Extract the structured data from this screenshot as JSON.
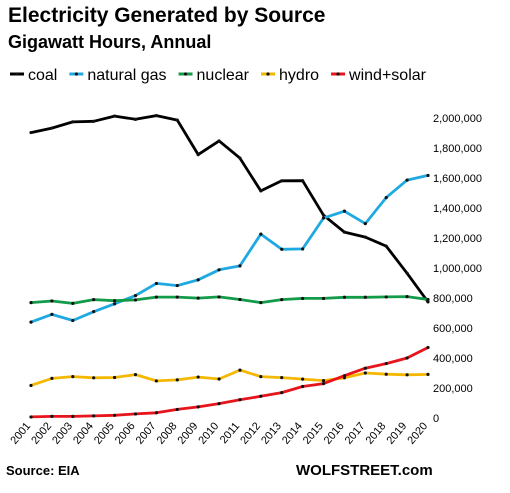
{
  "chart_data": {
    "type": "line",
    "title": "Electricity Generated by Source",
    "subtitle": "Gigawatt Hours, Annual",
    "x": [
      "2001",
      "2002",
      "2003",
      "2004",
      "2005",
      "2006",
      "2007",
      "2008",
      "2009",
      "2010",
      "2011",
      "2012",
      "2013",
      "2014",
      "2015",
      "2016",
      "2017",
      "2018",
      "2019",
      "2020"
    ],
    "ylim": [
      0,
      2000000
    ],
    "yticks": [
      0,
      200000,
      400000,
      600000,
      800000,
      1000000,
      1200000,
      1400000,
      1600000,
      1800000,
      2000000
    ],
    "ytick_labels": [
      "0",
      "200,000",
      "400,000",
      "600,000",
      "800,000",
      "1,000,000",
      "1,200,000",
      "1,400,000",
      "1,600,000",
      "1,800,000",
      "2,000,000"
    ],
    "y_axis_position": "right",
    "grid": false,
    "legend_position": "top",
    "series": [
      {
        "name": "coal",
        "color": "#000000",
        "values": [
          1903000,
          1933000,
          1974000,
          1978000,
          2013000,
          1991000,
          2016000,
          1986000,
          1756000,
          1847000,
          1733000,
          1514000,
          1581000,
          1582000,
          1352000,
          1239000,
          1206000,
          1146000,
          965000,
          774000
        ]
      },
      {
        "name": "natural gas",
        "color": "#1fa9e1",
        "values": [
          639000,
          691000,
          650000,
          709000,
          761000,
          816000,
          897000,
          883000,
          921000,
          988000,
          1014000,
          1226000,
          1125000,
          1127000,
          1333000,
          1379000,
          1296000,
          1469000,
          1586000,
          1617000
        ]
      },
      {
        "name": "nuclear",
        "color": "#129b48",
        "values": [
          769000,
          780000,
          764000,
          789000,
          782000,
          787000,
          806000,
          806000,
          799000,
          807000,
          790000,
          769000,
          789000,
          797000,
          797000,
          805000,
          805000,
          807000,
          809000,
          790000
        ]
      },
      {
        "name": "hydro",
        "color": "#f5b800",
        "values": [
          217000,
          264000,
          276000,
          268000,
          270000,
          289000,
          247000,
          254000,
          273000,
          260000,
          319000,
          276000,
          269000,
          259000,
          249000,
          268000,
          300000,
          292000,
          288000,
          291000
        ]
      },
      {
        "name": "wind+solar",
        "color": "#e8141b",
        "values": [
          7000,
          11000,
          11000,
          14000,
          18000,
          27000,
          35000,
          57000,
          74000,
          96000,
          122000,
          145000,
          169000,
          210000,
          229000,
          282000,
          332000,
          363000,
          400000,
          470000
        ]
      }
    ]
  },
  "footer": {
    "source": "Source: EIA",
    "brand": "WOLFSTREET.com"
  }
}
